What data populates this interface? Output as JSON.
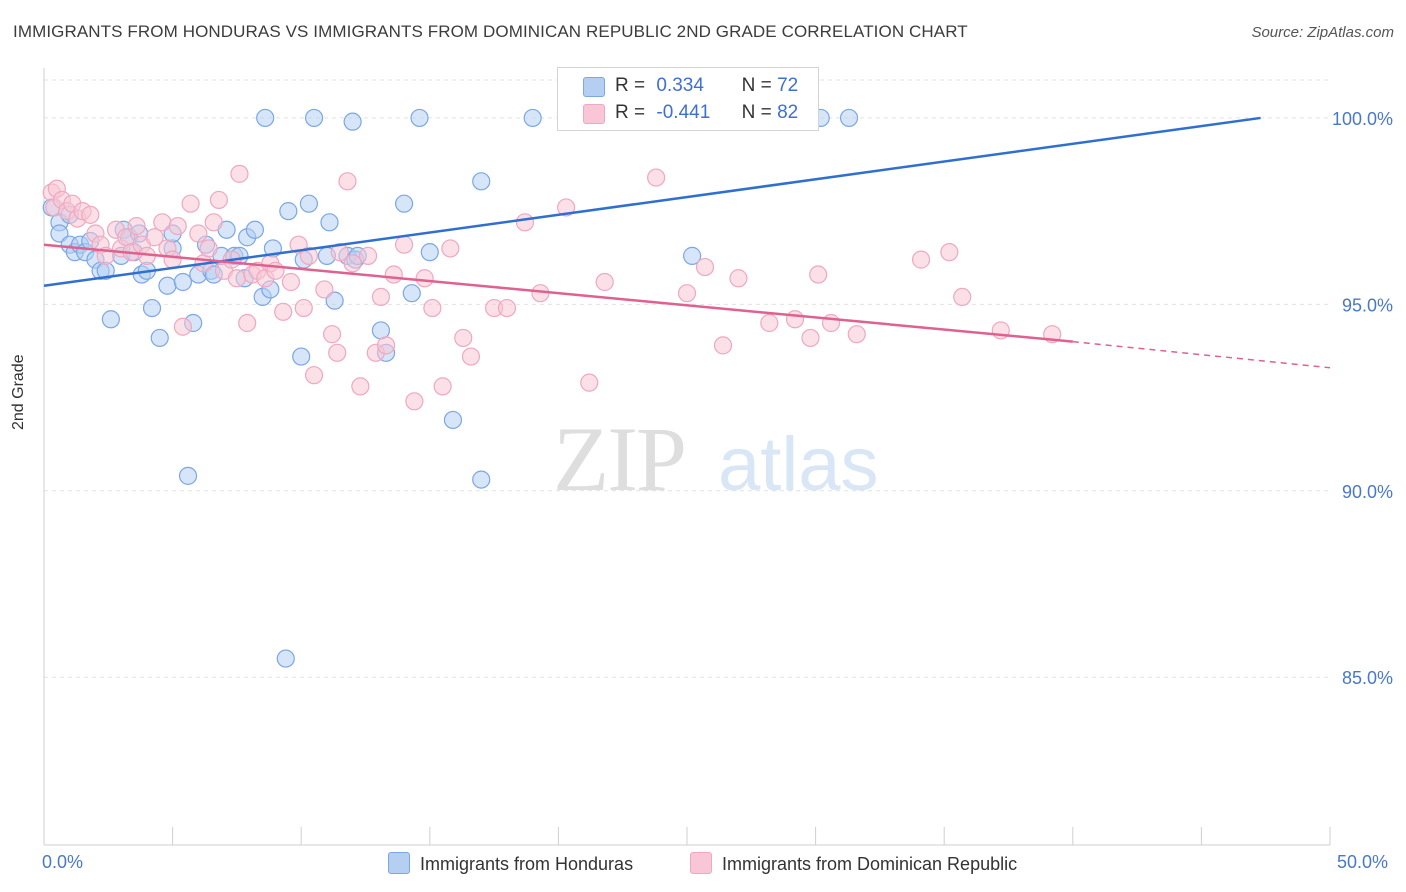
{
  "header": {
    "title": "IMMIGRANTS FROM HONDURAS VS IMMIGRANTS FROM DOMINICAN REPUBLIC 2ND GRADE CORRELATION CHART",
    "source": "Source: ZipAtlas.com"
  },
  "watermark": {
    "zip": "ZIP",
    "atlas": "atlas"
  },
  "legend": {
    "r_label": "R =",
    "n_label": "N =",
    "series": [
      {
        "r": "0.334",
        "n": "72"
      },
      {
        "r": "-0.441",
        "n": "82"
      }
    ]
  },
  "chart_data": {
    "type": "scatter",
    "title": "IMMIGRANTS FROM HONDURAS VS IMMIGRANTS FROM DOMINICAN REPUBLIC 2ND GRADE CORRELATION CHART",
    "ylabel": "2nd Grade",
    "xlim": [
      0,
      50
    ],
    "ylim": [
      80.5,
      101.5
    ],
    "x_tick_labels": [
      "0.0%",
      "50.0%"
    ],
    "y_ticks": [
      85,
      90,
      95,
      100
    ],
    "y_tick_labels": [
      "85.0%",
      "90.0%",
      "95.0%",
      "100.0%"
    ],
    "grid": true,
    "legend_position": "top-center",
    "series": [
      {
        "name": "Immigrants from Honduras",
        "color": "#7ba7e4",
        "fill": "#b5cff2",
        "line_color": "#2f6fd0",
        "trend": {
          "x": [
            0,
            47.3
          ],
          "y": [
            95.5,
            100.0
          ]
        },
        "points": [
          [
            0.3,
            97.6
          ],
          [
            0.6,
            97.2
          ],
          [
            0.6,
            96.9
          ],
          [
            1.0,
            97.4
          ],
          [
            1.0,
            96.6
          ],
          [
            1.2,
            96.4
          ],
          [
            1.4,
            96.6
          ],
          [
            1.6,
            96.4
          ],
          [
            1.8,
            96.7
          ],
          [
            2.0,
            96.2
          ],
          [
            2.2,
            95.9
          ],
          [
            2.4,
            95.9
          ],
          [
            2.6,
            94.6
          ],
          [
            3.0,
            96.3
          ],
          [
            3.1,
            97.0
          ],
          [
            3.3,
            96.8
          ],
          [
            3.5,
            96.4
          ],
          [
            3.7,
            96.9
          ],
          [
            3.8,
            95.8
          ],
          [
            4.0,
            95.9
          ],
          [
            4.2,
            94.9
          ],
          [
            4.5,
            94.1
          ],
          [
            4.8,
            95.5
          ],
          [
            5.0,
            96.5
          ],
          [
            5.0,
            96.9
          ],
          [
            5.4,
            95.6
          ],
          [
            5.6,
            90.4
          ],
          [
            5.8,
            94.5
          ],
          [
            6.0,
            95.8
          ],
          [
            6.3,
            96.6
          ],
          [
            6.5,
            95.9
          ],
          [
            6.6,
            95.8
          ],
          [
            6.9,
            96.3
          ],
          [
            7.1,
            97.0
          ],
          [
            7.4,
            96.3
          ],
          [
            7.6,
            96.3
          ],
          [
            7.8,
            95.7
          ],
          [
            7.9,
            96.8
          ],
          [
            8.2,
            97.0
          ],
          [
            8.5,
            95.2
          ],
          [
            8.8,
            95.4
          ],
          [
            8.6,
            100.0
          ],
          [
            8.9,
            96.5
          ],
          [
            9.4,
            85.5
          ],
          [
            9.5,
            97.5
          ],
          [
            10.0,
            93.6
          ],
          [
            10.1,
            96.2
          ],
          [
            10.3,
            97.7
          ],
          [
            10.5,
            100.0
          ],
          [
            11.0,
            96.3
          ],
          [
            11.1,
            97.2
          ],
          [
            11.3,
            95.1
          ],
          [
            11.8,
            96.3
          ],
          [
            12.0,
            99.9
          ],
          [
            12.1,
            96.2
          ],
          [
            12.2,
            96.3
          ],
          [
            13.1,
            94.3
          ],
          [
            13.3,
            93.7
          ],
          [
            14.0,
            97.7
          ],
          [
            14.3,
            95.3
          ],
          [
            14.6,
            100.0
          ],
          [
            15.0,
            96.4
          ],
          [
            15.9,
            91.9
          ],
          [
            17.0,
            98.3
          ],
          [
            17.0,
            90.3
          ],
          [
            19.0,
            100.0
          ],
          [
            21.9,
            100.0
          ],
          [
            23.8,
            100.0
          ],
          [
            25.6,
            100.0
          ],
          [
            25.2,
            96.3
          ],
          [
            30.2,
            100.0
          ],
          [
            31.3,
            100.0
          ]
        ]
      },
      {
        "name": "Immigrants from Dominican Republic",
        "color": "#eea8c0",
        "fill": "#f8c6d6",
        "line_color": "#e0608f",
        "trend": {
          "x": [
            0,
            40.0
          ],
          "y": [
            96.6,
            94.0
          ]
        },
        "trend_dashed": {
          "x": [
            40.0,
            50.0
          ],
          "y": [
            94.0,
            93.3
          ]
        },
        "points": [
          [
            0.3,
            98.0
          ],
          [
            0.4,
            97.6
          ],
          [
            0.5,
            98.1
          ],
          [
            0.7,
            97.8
          ],
          [
            0.9,
            97.5
          ],
          [
            1.1,
            97.7
          ],
          [
            1.3,
            97.3
          ],
          [
            1.5,
            97.5
          ],
          [
            1.8,
            97.4
          ],
          [
            2.0,
            96.9
          ],
          [
            2.2,
            96.6
          ],
          [
            2.4,
            96.3
          ],
          [
            2.8,
            97.0
          ],
          [
            3.0,
            96.5
          ],
          [
            3.2,
            96.8
          ],
          [
            3.4,
            96.4
          ],
          [
            3.6,
            97.1
          ],
          [
            3.8,
            96.6
          ],
          [
            4.0,
            96.3
          ],
          [
            4.3,
            96.8
          ],
          [
            4.6,
            97.2
          ],
          [
            4.8,
            96.5
          ],
          [
            5.0,
            96.2
          ],
          [
            5.2,
            97.1
          ],
          [
            5.4,
            94.4
          ],
          [
            5.7,
            97.7
          ],
          [
            6.0,
            96.9
          ],
          [
            6.2,
            96.1
          ],
          [
            6.4,
            96.5
          ],
          [
            6.6,
            97.2
          ],
          [
            6.8,
            97.8
          ],
          [
            7.0,
            95.9
          ],
          [
            7.3,
            96.2
          ],
          [
            7.5,
            95.7
          ],
          [
            7.6,
            98.5
          ],
          [
            7.9,
            94.5
          ],
          [
            8.1,
            95.8
          ],
          [
            8.3,
            95.9
          ],
          [
            8.6,
            95.7
          ],
          [
            8.8,
            96.1
          ],
          [
            9.0,
            95.9
          ],
          [
            9.3,
            94.8
          ],
          [
            9.6,
            95.6
          ],
          [
            9.9,
            96.6
          ],
          [
            10.1,
            94.9
          ],
          [
            10.3,
            96.3
          ],
          [
            10.5,
            93.1
          ],
          [
            10.9,
            95.4
          ],
          [
            11.2,
            94.2
          ],
          [
            11.4,
            93.7
          ],
          [
            11.5,
            96.4
          ],
          [
            11.8,
            98.3
          ],
          [
            12.0,
            96.1
          ],
          [
            12.3,
            92.8
          ],
          [
            12.6,
            96.3
          ],
          [
            12.9,
            93.7
          ],
          [
            13.1,
            95.2
          ],
          [
            13.3,
            93.9
          ],
          [
            13.6,
            95.8
          ],
          [
            14.0,
            96.6
          ],
          [
            14.4,
            92.4
          ],
          [
            14.8,
            95.7
          ],
          [
            15.1,
            94.9
          ],
          [
            15.5,
            92.8
          ],
          [
            15.8,
            96.5
          ],
          [
            16.3,
            94.1
          ],
          [
            16.6,
            93.6
          ],
          [
            17.5,
            94.9
          ],
          [
            18.0,
            94.9
          ],
          [
            18.7,
            97.2
          ],
          [
            19.3,
            95.3
          ],
          [
            20.3,
            97.6
          ],
          [
            21.2,
            92.9
          ],
          [
            21.8,
            95.6
          ],
          [
            23.8,
            98.4
          ],
          [
            25.0,
            95.3
          ],
          [
            25.7,
            96.0
          ],
          [
            26.4,
            93.9
          ],
          [
            27.0,
            95.7
          ],
          [
            28.2,
            94.5
          ],
          [
            29.2,
            94.6
          ],
          [
            29.8,
            94.1
          ],
          [
            30.1,
            95.8
          ],
          [
            30.6,
            94.5
          ],
          [
            31.6,
            94.2
          ],
          [
            34.1,
            96.2
          ],
          [
            35.2,
            96.4
          ],
          [
            35.7,
            95.2
          ],
          [
            37.2,
            94.3
          ],
          [
            39.2,
            94.2
          ]
        ]
      }
    ]
  },
  "bottom_legend": [
    {
      "label": "Immigrants from Honduras"
    },
    {
      "label": "Immigrants from Dominican Republic"
    }
  ]
}
